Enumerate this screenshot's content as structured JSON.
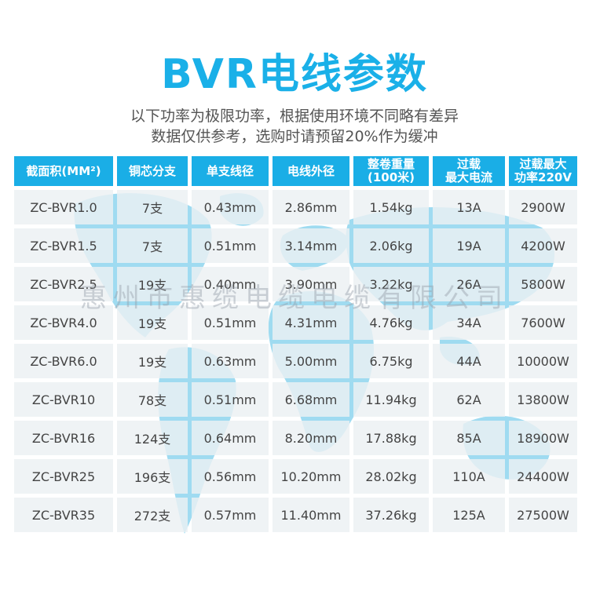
{
  "title": "BVR电线参数",
  "subtitle_line1": "以下功率为极限功率，根据使用环境不同略有差异",
  "subtitle_line2": "数据仅供参考，选购时请预留20%作为缓冲",
  "watermark": "惠州市惠缆电缆电缆有限公司",
  "colors": {
    "accent": "#1aaee6",
    "title": "#1ab0e8",
    "cell_bg": "#eceff3",
    "map": "#7fcfec"
  },
  "table": {
    "headers": [
      {
        "line1": "截面积(MM²)",
        "line2": ""
      },
      {
        "line1": "铜芯分支",
        "line2": ""
      },
      {
        "line1": "单支线径",
        "line2": ""
      },
      {
        "line1": "电线外径",
        "line2": ""
      },
      {
        "line1": "整卷重量",
        "line2": "(100米)"
      },
      {
        "line1": "过载",
        "line2": "最大电流"
      },
      {
        "line1": "过载最大",
        "line2": "功率220V"
      }
    ],
    "rows": [
      [
        "ZC-BVR1.0",
        "7支",
        "0.43mm",
        "2.86mm",
        "1.54kg",
        "13A",
        "2900W"
      ],
      [
        "ZC-BVR1.5",
        "7支",
        "0.51mm",
        "3.14mm",
        "2.06kg",
        "19A",
        "4200W"
      ],
      [
        "ZC-BVR2.5",
        "19支",
        "0.40mm",
        "3.90mm",
        "3.22kg",
        "26A",
        "5800W"
      ],
      [
        "ZC-BVR4.0",
        "19支",
        "0.51mm",
        "4.31mm",
        "4.76kg",
        "34A",
        "7600W"
      ],
      [
        "ZC-BVR6.0",
        "19支",
        "0.63mm",
        "5.00mm",
        "6.75kg",
        "44A",
        "10000W"
      ],
      [
        "ZC-BVR10",
        "78支",
        "0.51mm",
        "6.68mm",
        "11.94kg",
        "62A",
        "13800W"
      ],
      [
        "ZC-BVR16",
        "124支",
        "0.64mm",
        "8.20mm",
        "17.88kg",
        "85A",
        "18900W"
      ],
      [
        "ZC-BVR25",
        "196支",
        "0.56mm",
        "10.20mm",
        "28.02kg",
        "110A",
        "24400W"
      ],
      [
        "ZC-BVR35",
        "272支",
        "0.57mm",
        "11.40mm",
        "37.26kg",
        "125A",
        "27500W"
      ]
    ]
  }
}
